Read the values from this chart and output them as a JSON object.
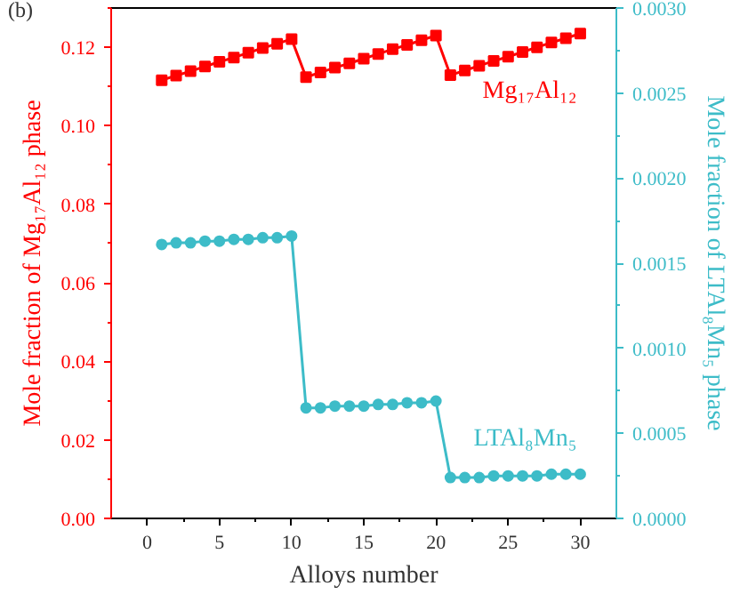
{
  "chart_data": {
    "type": "line",
    "xlabel": "Alloys number",
    "ylabel": "Mole fraction of Mg₁₇Al₁₂ phase",
    "y2label": "Mole fraction of LTAl₈Mn₅ phase",
    "annotations": [
      "(b)"
    ],
    "x": [
      1,
      2,
      3,
      4,
      5,
      6,
      7,
      8,
      9,
      10,
      11,
      12,
      13,
      14,
      15,
      16,
      17,
      18,
      19,
      20,
      21,
      22,
      23,
      24,
      25,
      26,
      27,
      28,
      29,
      30
    ],
    "series": [
      {
        "name": "Mg₁₇Al₁₂",
        "color": "#ff0000",
        "marker": "square",
        "values": [
          0.1116,
          0.1128,
          0.1139,
          0.1151,
          0.1163,
          0.1174,
          0.1186,
          0.1198,
          0.1209,
          0.1221,
          0.1124,
          0.1136,
          0.1148,
          0.1159,
          0.1171,
          0.1183,
          0.1195,
          0.1206,
          0.1218,
          0.123,
          0.1129,
          0.1141,
          0.1153,
          0.1165,
          0.1176,
          0.1188,
          0.12,
          0.1212,
          0.1223,
          0.1235
        ]
      },
      {
        "name": "LTAl₈Mn₅",
        "color": "#3dbcc8",
        "marker": "circle",
        "axis": "y2",
        "values": [
          0.00161,
          0.00162,
          0.00162,
          0.00163,
          0.00163,
          0.00164,
          0.00164,
          0.00165,
          0.00165,
          0.00166,
          0.00065,
          0.00065,
          0.00066,
          0.00066,
          0.00066,
          0.00067,
          0.00067,
          0.00068,
          0.00068,
          0.00069,
          0.00024,
          0.00024,
          0.00024,
          0.00025,
          0.00025,
          0.00025,
          0.00025,
          0.00026,
          0.00026,
          0.00026
        ]
      }
    ],
    "xlim": [
      -2.5,
      32.5
    ],
    "xticks": [
      0,
      5,
      10,
      15,
      20,
      25,
      30
    ],
    "ylim": [
      0,
      0.13
    ],
    "yticks": [
      {
        "value": 0,
        "label": "0.00"
      },
      {
        "value": 0.02,
        "label": "0.02"
      },
      {
        "value": 0.04,
        "label": "0.04"
      },
      {
        "value": 0.06,
        "label": "0.06"
      },
      {
        "value": 0.08,
        "label": "0.08"
      },
      {
        "value": 0.1,
        "label": "0.10"
      },
      {
        "value": 0.12,
        "label": "0.12"
      }
    ],
    "y2lim": [
      0,
      0.003
    ],
    "y2ticks": [
      {
        "value": 0,
        "label": "0.0000"
      },
      {
        "value": 0.0005,
        "label": "0.0005"
      },
      {
        "value": 0.001,
        "label": "0.0010"
      },
      {
        "value": 0.0015,
        "label": "0.0015"
      },
      {
        "value": 0.002,
        "label": "0.0020"
      },
      {
        "value": 0.0025,
        "label": "0.0025"
      },
      {
        "value": 0.003,
        "label": "0.0030"
      }
    ],
    "grid": false
  }
}
